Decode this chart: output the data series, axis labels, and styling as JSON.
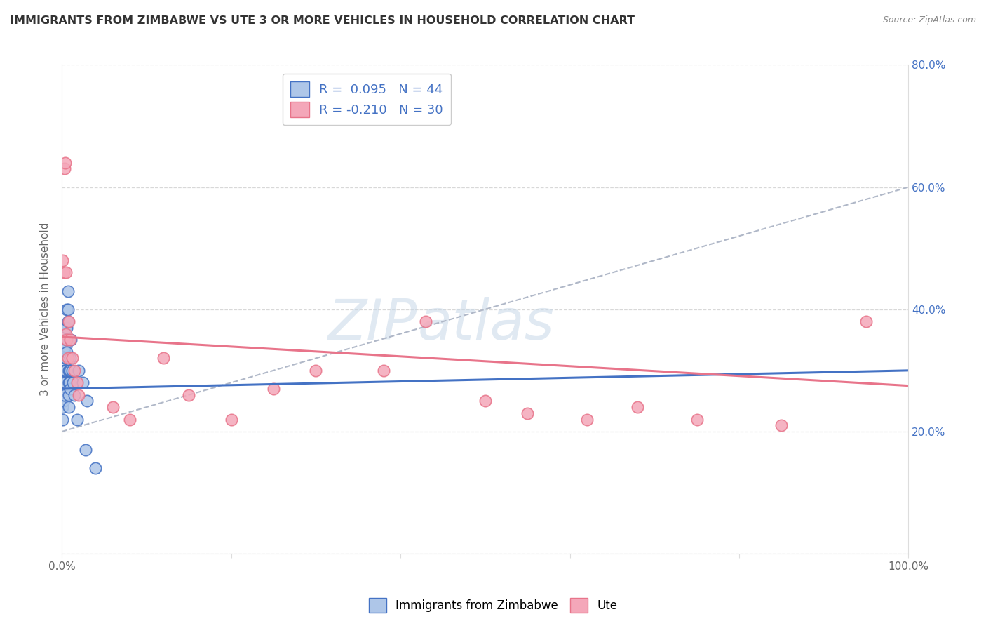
{
  "title": "IMMIGRANTS FROM ZIMBABWE VS UTE 3 OR MORE VEHICLES IN HOUSEHOLD CORRELATION CHART",
  "source": "Source: ZipAtlas.com",
  "ylabel": "3 or more Vehicles in Household",
  "xlim": [
    0,
    1.0
  ],
  "ylim": [
    0,
    0.8
  ],
  "xticks": [
    0.0,
    0.2,
    0.4,
    0.6,
    0.8,
    1.0
  ],
  "yticks": [
    0.0,
    0.2,
    0.4,
    0.6,
    0.8
  ],
  "xticklabels": [
    "0.0%",
    "",
    "",
    "",
    "",
    "100.0%"
  ],
  "right_ytick_labels": [
    "20.0%",
    "40.0%",
    "60.0%",
    "80.0%"
  ],
  "right_ytick_positions": [
    0.2,
    0.4,
    0.6,
    0.8
  ],
  "legend_labels": [
    "Immigrants from Zimbabwe",
    "Ute"
  ],
  "blue_R": "0.095",
  "blue_N": "44",
  "pink_R": "-0.210",
  "pink_N": "30",
  "blue_color": "#aec6e8",
  "pink_color": "#f4a7b9",
  "blue_line_color": "#4472c4",
  "pink_line_color": "#e8748a",
  "watermark": "ZIPatlas",
  "blue_scatter_x": [
    0.001,
    0.001,
    0.001,
    0.002,
    0.002,
    0.002,
    0.003,
    0.003,
    0.003,
    0.003,
    0.004,
    0.004,
    0.004,
    0.004,
    0.005,
    0.005,
    0.005,
    0.005,
    0.006,
    0.006,
    0.006,
    0.006,
    0.007,
    0.007,
    0.007,
    0.008,
    0.008,
    0.008,
    0.008,
    0.009,
    0.009,
    0.01,
    0.01,
    0.01,
    0.011,
    0.012,
    0.013,
    0.015,
    0.018,
    0.02,
    0.025,
    0.028,
    0.03,
    0.04
  ],
  "blue_scatter_y": [
    0.27,
    0.24,
    0.22,
    0.3,
    0.27,
    0.25,
    0.33,
    0.3,
    0.28,
    0.26,
    0.35,
    0.32,
    0.3,
    0.28,
    0.37,
    0.34,
    0.32,
    0.3,
    0.4,
    0.37,
    0.35,
    0.33,
    0.43,
    0.4,
    0.38,
    0.3,
    0.28,
    0.26,
    0.24,
    0.3,
    0.28,
    0.32,
    0.3,
    0.27,
    0.35,
    0.3,
    0.28,
    0.26,
    0.22,
    0.3,
    0.28,
    0.17,
    0.25,
    0.14
  ],
  "pink_scatter_x": [
    0.001,
    0.002,
    0.003,
    0.004,
    0.005,
    0.005,
    0.006,
    0.007,
    0.008,
    0.01,
    0.012,
    0.015,
    0.018,
    0.02,
    0.06,
    0.08,
    0.12,
    0.15,
    0.2,
    0.25,
    0.3,
    0.38,
    0.43,
    0.5,
    0.55,
    0.62,
    0.68,
    0.75,
    0.85,
    0.95
  ],
  "pink_scatter_y": [
    0.48,
    0.46,
    0.63,
    0.64,
    0.46,
    0.36,
    0.35,
    0.32,
    0.38,
    0.35,
    0.32,
    0.3,
    0.28,
    0.26,
    0.24,
    0.22,
    0.32,
    0.26,
    0.22,
    0.27,
    0.3,
    0.3,
    0.38,
    0.25,
    0.23,
    0.22,
    0.24,
    0.22,
    0.21,
    0.38
  ],
  "blue_trend_x0": 0.0,
  "blue_trend_y0": 0.27,
  "blue_trend_x1": 1.0,
  "blue_trend_y1": 0.3,
  "pink_trend_x0": 0.0,
  "pink_trend_y0": 0.355,
  "pink_trend_x1": 1.0,
  "pink_trend_y1": 0.275,
  "grey_trend_x0": 0.0,
  "grey_trend_y0": 0.2,
  "grey_trend_x1": 1.0,
  "grey_trend_y1": 0.6
}
